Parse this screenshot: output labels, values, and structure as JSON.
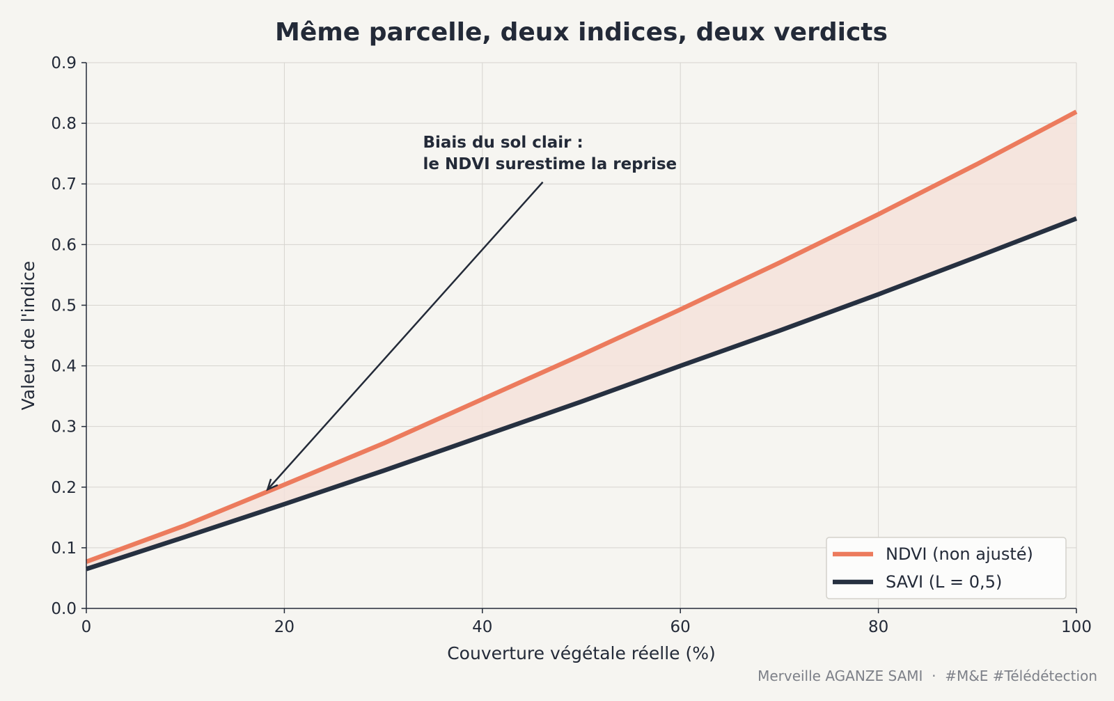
{
  "colors": {
    "background": "#f6f5f1",
    "text": "#232a38",
    "grid": "#d6d4cf",
    "ndvi": "#ec7b5d",
    "savi": "#263040",
    "fill": "#f5e2da",
    "footer": "#7d8088"
  },
  "chart_data": {
    "type": "line",
    "title": "Même parcelle, deux indices, deux verdicts",
    "xlabel": "Couverture végétale réelle (%)",
    "ylabel": "Valeur de l'indice",
    "xlim": [
      0,
      100
    ],
    "ylim": [
      0,
      0.9
    ],
    "xticks": [
      0,
      20,
      40,
      60,
      80,
      100
    ],
    "xtick_labels": [
      "0",
      "20",
      "40",
      "60",
      "80",
      "100"
    ],
    "yticks": [
      0,
      0.1,
      0.2,
      0.3,
      0.4,
      0.5,
      0.6,
      0.7,
      0.8,
      0.9
    ],
    "ytick_labels": [
      "0.0",
      "0.1",
      "0.2",
      "0.3",
      "0.4",
      "0.5",
      "0.6",
      "0.7",
      "0.8",
      "0.9"
    ],
    "grid": true,
    "legend_position": "bottom-right",
    "fill_between": true,
    "x": [
      0,
      10,
      20,
      30,
      40,
      50,
      60,
      70,
      80,
      90,
      100
    ],
    "series": [
      {
        "name": "NDVI  (non ajusté)",
        "color": "#ec7b5d",
        "values": [
          0.077,
          0.137,
          0.204,
          0.272,
          0.345,
          0.418,
          0.493,
          0.57,
          0.65,
          0.733,
          0.819
        ]
      },
      {
        "name": "SAVI  (L = 0,5)",
        "color": "#263040",
        "values": [
          0.065,
          0.118,
          0.172,
          0.227,
          0.284,
          0.341,
          0.4,
          0.458,
          0.518,
          0.58,
          0.643
        ]
      }
    ],
    "annotation": {
      "lines": [
        "Biais du sol clair :",
        "le NDVI surestime la reprise"
      ],
      "text_at": [
        34,
        0.76
      ],
      "arrow_from": [
        46.1,
        0.703
      ],
      "arrow_to": [
        18.3,
        0.196
      ]
    }
  },
  "footer": {
    "credit": "Merveille AGANZE SAMI  ·  #M&E #Télédétection"
  }
}
